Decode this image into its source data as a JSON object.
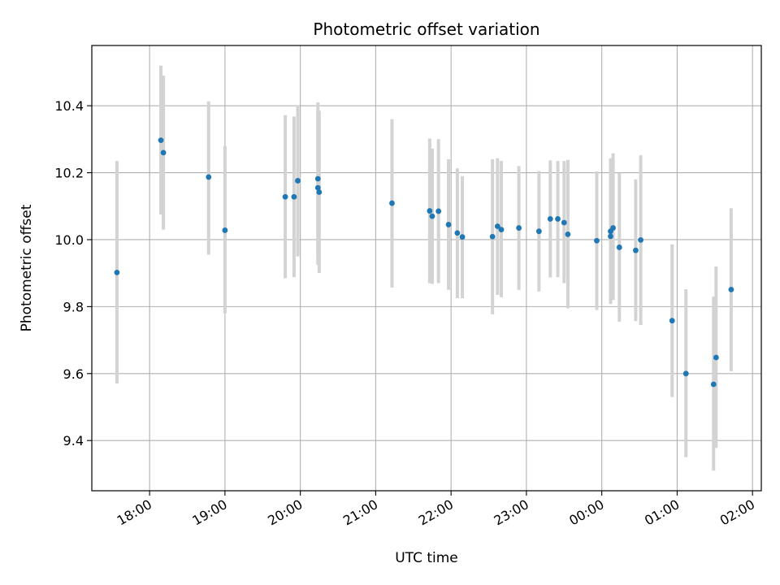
{
  "chart_data": {
    "type": "scatter",
    "title": "Photometric offset variation",
    "xlabel": "UTC time",
    "ylabel": "Photometric offset",
    "x_unit": "UTC time (HH:MM)",
    "xlim": [
      "17:14",
      "02:07"
    ],
    "ylim": [
      9.25,
      10.58
    ],
    "x_ticks": [
      "18:00",
      "19:00",
      "20:00",
      "21:00",
      "22:00",
      "23:00",
      "00:00",
      "01:00",
      "02:00"
    ],
    "y_ticks": [
      "9.4",
      "9.6",
      "9.8",
      "10.0",
      "10.2",
      "10.4"
    ],
    "y_tick_values": [
      9.4,
      9.6,
      9.8,
      10.0,
      10.2,
      10.4
    ],
    "grid": true,
    "colors": {
      "point": "#1f77b4",
      "errorbar": "#d3d3d3",
      "grid": "#b0b0b0"
    },
    "series": [
      {
        "points": [
          {
            "t": "17:34",
            "y": 9.902,
            "lo": 9.57,
            "hi": 10.235
          },
          {
            "t": "18:09",
            "y": 10.297,
            "lo": 10.075,
            "hi": 10.52
          },
          {
            "t": "18:11",
            "y": 10.26,
            "lo": 10.03,
            "hi": 10.49
          },
          {
            "t": "18:47",
            "y": 10.187,
            "lo": 9.955,
            "hi": 10.413
          },
          {
            "t": "19:00",
            "y": 10.028,
            "lo": 9.78,
            "hi": 10.28
          },
          {
            "t": "19:48",
            "y": 10.128,
            "lo": 9.885,
            "hi": 10.372
          },
          {
            "t": "19:55",
            "y": 10.128,
            "lo": 9.888,
            "hi": 10.368
          },
          {
            "t": "19:58",
            "y": 10.176,
            "lo": 9.95,
            "hi": 10.402
          },
          {
            "t": "20:14",
            "y": 10.182,
            "lo": 9.955,
            "hi": 10.41
          },
          {
            "t": "20:14",
            "y": 10.155,
            "lo": 9.925,
            "hi": 10.385
          },
          {
            "t": "20:15",
            "y": 10.142,
            "lo": 9.9,
            "hi": 10.385
          },
          {
            "t": "21:13",
            "y": 10.109,
            "lo": 9.857,
            "hi": 10.36
          },
          {
            "t": "21:43",
            "y": 10.086,
            "lo": 9.87,
            "hi": 10.302
          },
          {
            "t": "21:45",
            "y": 10.07,
            "lo": 9.868,
            "hi": 10.272
          },
          {
            "t": "21:50",
            "y": 10.085,
            "lo": 9.87,
            "hi": 10.3
          },
          {
            "t": "21:58",
            "y": 10.045,
            "lo": 9.85,
            "hi": 10.24
          },
          {
            "t": "22:05",
            "y": 10.02,
            "lo": 9.825,
            "hi": 10.213
          },
          {
            "t": "22:09",
            "y": 10.008,
            "lo": 9.825,
            "hi": 10.19
          },
          {
            "t": "22:33",
            "y": 10.009,
            "lo": 9.777,
            "hi": 10.24
          },
          {
            "t": "22:37",
            "y": 10.04,
            "lo": 9.835,
            "hi": 10.243
          },
          {
            "t": "22:40",
            "y": 10.03,
            "lo": 9.828,
            "hi": 10.235
          },
          {
            "t": "22:54",
            "y": 10.035,
            "lo": 9.85,
            "hi": 10.22
          },
          {
            "t": "23:10",
            "y": 10.025,
            "lo": 9.845,
            "hi": 10.205
          },
          {
            "t": "23:19",
            "y": 10.062,
            "lo": 9.887,
            "hi": 10.237
          },
          {
            "t": "23:25",
            "y": 10.062,
            "lo": 9.888,
            "hi": 10.235
          },
          {
            "t": "23:30",
            "y": 10.051,
            "lo": 9.87,
            "hi": 10.235
          },
          {
            "t": "23:33",
            "y": 10.016,
            "lo": 9.795,
            "hi": 10.238
          },
          {
            "t": "23:56",
            "y": 9.997,
            "lo": 9.79,
            "hi": 10.204
          },
          {
            "t": "00:07",
            "y": 10.01,
            "lo": 9.808,
            "hi": 10.24
          },
          {
            "t": "00:07",
            "y": 10.025,
            "lo": 9.81,
            "hi": 10.243
          },
          {
            "t": "00:09",
            "y": 10.035,
            "lo": 9.82,
            "hi": 10.258
          },
          {
            "t": "00:14",
            "y": 9.977,
            "lo": 9.755,
            "hi": 10.2
          },
          {
            "t": "00:27",
            "y": 9.968,
            "lo": 9.757,
            "hi": 10.18
          },
          {
            "t": "00:31",
            "y": 9.999,
            "lo": 9.745,
            "hi": 10.252
          },
          {
            "t": "00:56",
            "y": 9.758,
            "lo": 9.53,
            "hi": 9.986
          },
          {
            "t": "01:07",
            "y": 9.6,
            "lo": 9.35,
            "hi": 9.852
          },
          {
            "t": "01:29",
            "y": 9.568,
            "lo": 9.31,
            "hi": 9.83
          },
          {
            "t": "01:31",
            "y": 9.648,
            "lo": 9.378,
            "hi": 9.92
          },
          {
            "t": "01:43",
            "y": 9.851,
            "lo": 9.607,
            "hi": 10.094
          }
        ]
      }
    ]
  }
}
